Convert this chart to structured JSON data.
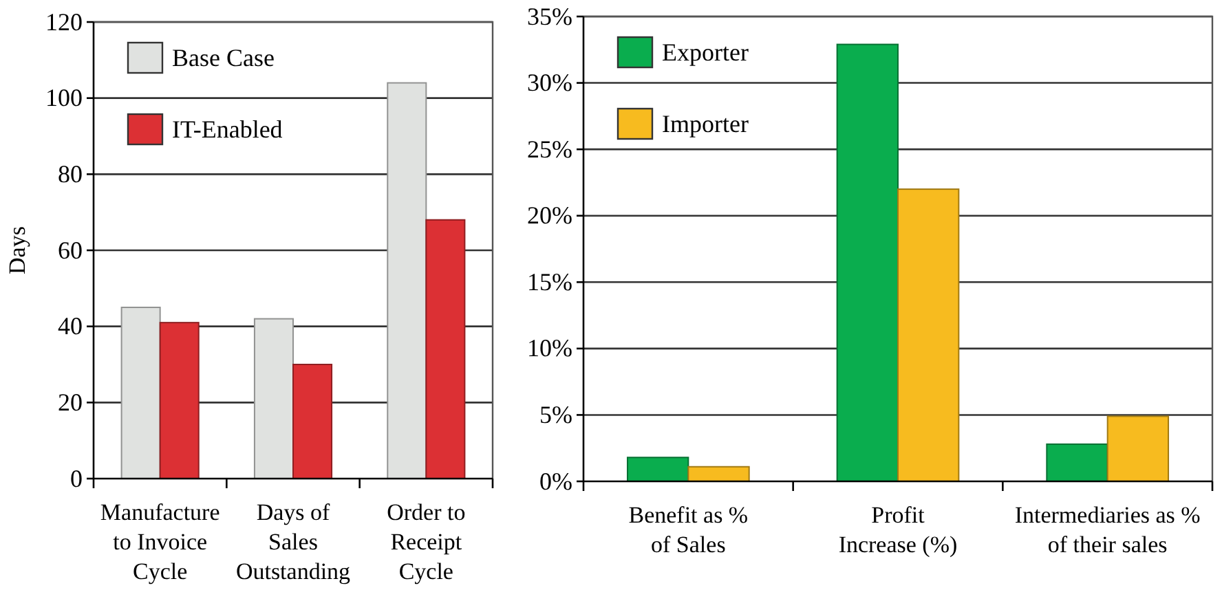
{
  "chart_data": [
    {
      "type": "bar",
      "ylabel": "Days",
      "categories": [
        "Manufacture\nto Invoice\nCycle",
        "Days of\nSales\nOutstanding",
        "Order to\nReceipt\nCycle"
      ],
      "series": [
        {
          "name": "Base Case",
          "color": "#e0e2e0",
          "values": [
            45,
            42,
            104
          ]
        },
        {
          "name": "IT-Enabled",
          "color": "#dc3034",
          "values": [
            41,
            30,
            68
          ]
        }
      ],
      "ylim": [
        0,
        120
      ],
      "yticks": [
        0,
        20,
        40,
        60,
        80,
        100,
        120
      ],
      "grid": "y",
      "legend": "top left"
    },
    {
      "type": "bar",
      "categories": [
        "Benefit as %\nof Sales",
        "Profit\nIncrease (%)",
        "Intermediaries as %\nof their sales"
      ],
      "series": [
        {
          "name": "Exporter",
          "color": "#0aad4e",
          "values": [
            1.8,
            32.9,
            2.8
          ]
        },
        {
          "name": "Importer",
          "color": "#f7bb1f",
          "values": [
            1.1,
            22,
            4.9
          ]
        }
      ],
      "ylim": [
        0,
        35
      ],
      "yticks": [
        {
          "value": 0,
          "label": "0%"
        },
        {
          "value": 5,
          "label": "5%"
        },
        {
          "value": 10,
          "label": "10%"
        },
        {
          "value": 15,
          "label": "15%"
        },
        {
          "value": 20,
          "label": "20%"
        },
        {
          "value": 25,
          "label": "25%"
        },
        {
          "value": 30,
          "label": "30%"
        },
        {
          "value": 35,
          "label": "35%"
        }
      ],
      "grid": "y",
      "legend": "top left"
    }
  ]
}
